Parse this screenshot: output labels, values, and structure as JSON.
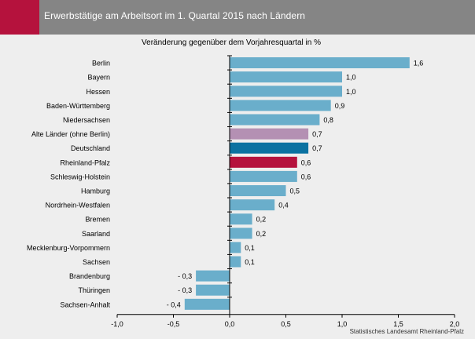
{
  "header": {
    "title": "Erwerbstätige am Arbeitsort im 1. Quartal 2015 nach Ländern"
  },
  "source": "Statistisches Landesamt Rheinland-Pfalz",
  "colors": {
    "header_bg": "#858585",
    "header_accent": "#b5123d",
    "bar_default": "#6aaecb",
    "bar_alte_laender": "#b490b3",
    "bar_deutschland": "#0b72a1",
    "bar_rheinland_pfalz": "#b5123d"
  },
  "chart_data": {
    "type": "bar",
    "orientation": "horizontal",
    "subtitle": "Veränderung gegenüber dem Vorjahresquartal in %",
    "categories": [
      "Berlin",
      "Bayern",
      "Hessen",
      "Baden-Württemberg",
      "Niedersachsen",
      "Alte Länder (ohne Berlin)",
      "Deutschland",
      "Rheinland-Pfalz",
      "Schleswig-Holstein",
      "Hamburg",
      "Nordrhein-Westfalen",
      "Bremen",
      "Saarland",
      "Mecklenburg-Vorpommern",
      "Sachsen",
      "Brandenburg",
      "Thüringen",
      "Sachsen-Anhalt"
    ],
    "values": [
      1.6,
      1.0,
      1.0,
      0.9,
      0.8,
      0.7,
      0.7,
      0.6,
      0.6,
      0.5,
      0.4,
      0.2,
      0.2,
      0.1,
      0.1,
      -0.3,
      -0.3,
      -0.4
    ],
    "value_labels": [
      "1,6",
      "1,0",
      "1,0",
      "0,9",
      "0,8",
      "0,7",
      "0,7",
      "0,6",
      "0,6",
      "0,5",
      "0,4",
      "0,2",
      "0,2",
      "0,1",
      "0,1",
      "- 0,3",
      "- 0,3",
      "- 0,4"
    ],
    "bar_colors": [
      "#6aaecb",
      "#6aaecb",
      "#6aaecb",
      "#6aaecb",
      "#6aaecb",
      "#b490b3",
      "#0b72a1",
      "#b5123d",
      "#6aaecb",
      "#6aaecb",
      "#6aaecb",
      "#6aaecb",
      "#6aaecb",
      "#6aaecb",
      "#6aaecb",
      "#6aaecb",
      "#6aaecb",
      "#6aaecb"
    ],
    "xlim": [
      -1.0,
      2.0
    ],
    "x_ticks": [
      -1.0,
      -0.5,
      0.0,
      0.5,
      1.0,
      1.5,
      2.0
    ],
    "x_tick_labels": [
      "-1,0",
      "-0,5",
      "0,0",
      "0,5",
      "1,0",
      "1,5",
      "2,0"
    ],
    "grid": false,
    "legend": "none"
  }
}
